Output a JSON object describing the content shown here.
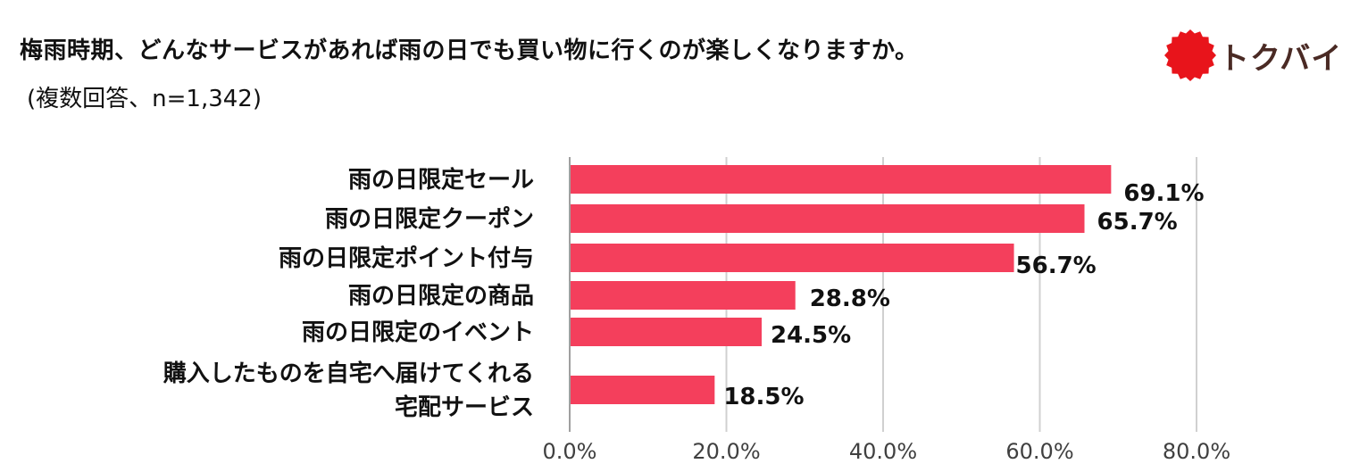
{
  "header": {
    "title": "梅雨時期、どんなサービスがあれば雨の日でも買い物に行くのが楽しくなりますか。",
    "subtitle": "(複数回答、n=1,342)"
  },
  "logo": {
    "text": "トクバイ",
    "mark_color": "#e8141b",
    "text_color": "#4a2a24"
  },
  "colors": {
    "bar": "#f43f5c",
    "grid": "#d0d0d0",
    "axis": "#a0a0a0"
  },
  "chart_data": {
    "type": "bar",
    "orientation": "horizontal",
    "categories": [
      [
        "雨の日限定セール"
      ],
      [
        "雨の日限定クーポン"
      ],
      [
        "雨の日限定ポイント付与"
      ],
      [
        "雨の日限定の商品"
      ],
      [
        "雨の日限定のイベント"
      ],
      [
        "購入したものを自宅へ届けてくれる",
        "宅配サービス"
      ]
    ],
    "values": [
      69.1,
      65.7,
      56.7,
      28.8,
      24.5,
      18.5
    ],
    "value_labels": [
      "69.1%",
      "65.7%",
      "56.7%",
      "28.8%",
      "24.5%",
      "18.5%"
    ],
    "xlim": [
      0,
      80
    ],
    "ticks": [
      0,
      20,
      40,
      60,
      80
    ],
    "tick_labels": [
      "0.0%",
      "20.0%",
      "40.0%",
      "60.0%",
      "80.0%"
    ],
    "grid": true,
    "legend": "none"
  }
}
